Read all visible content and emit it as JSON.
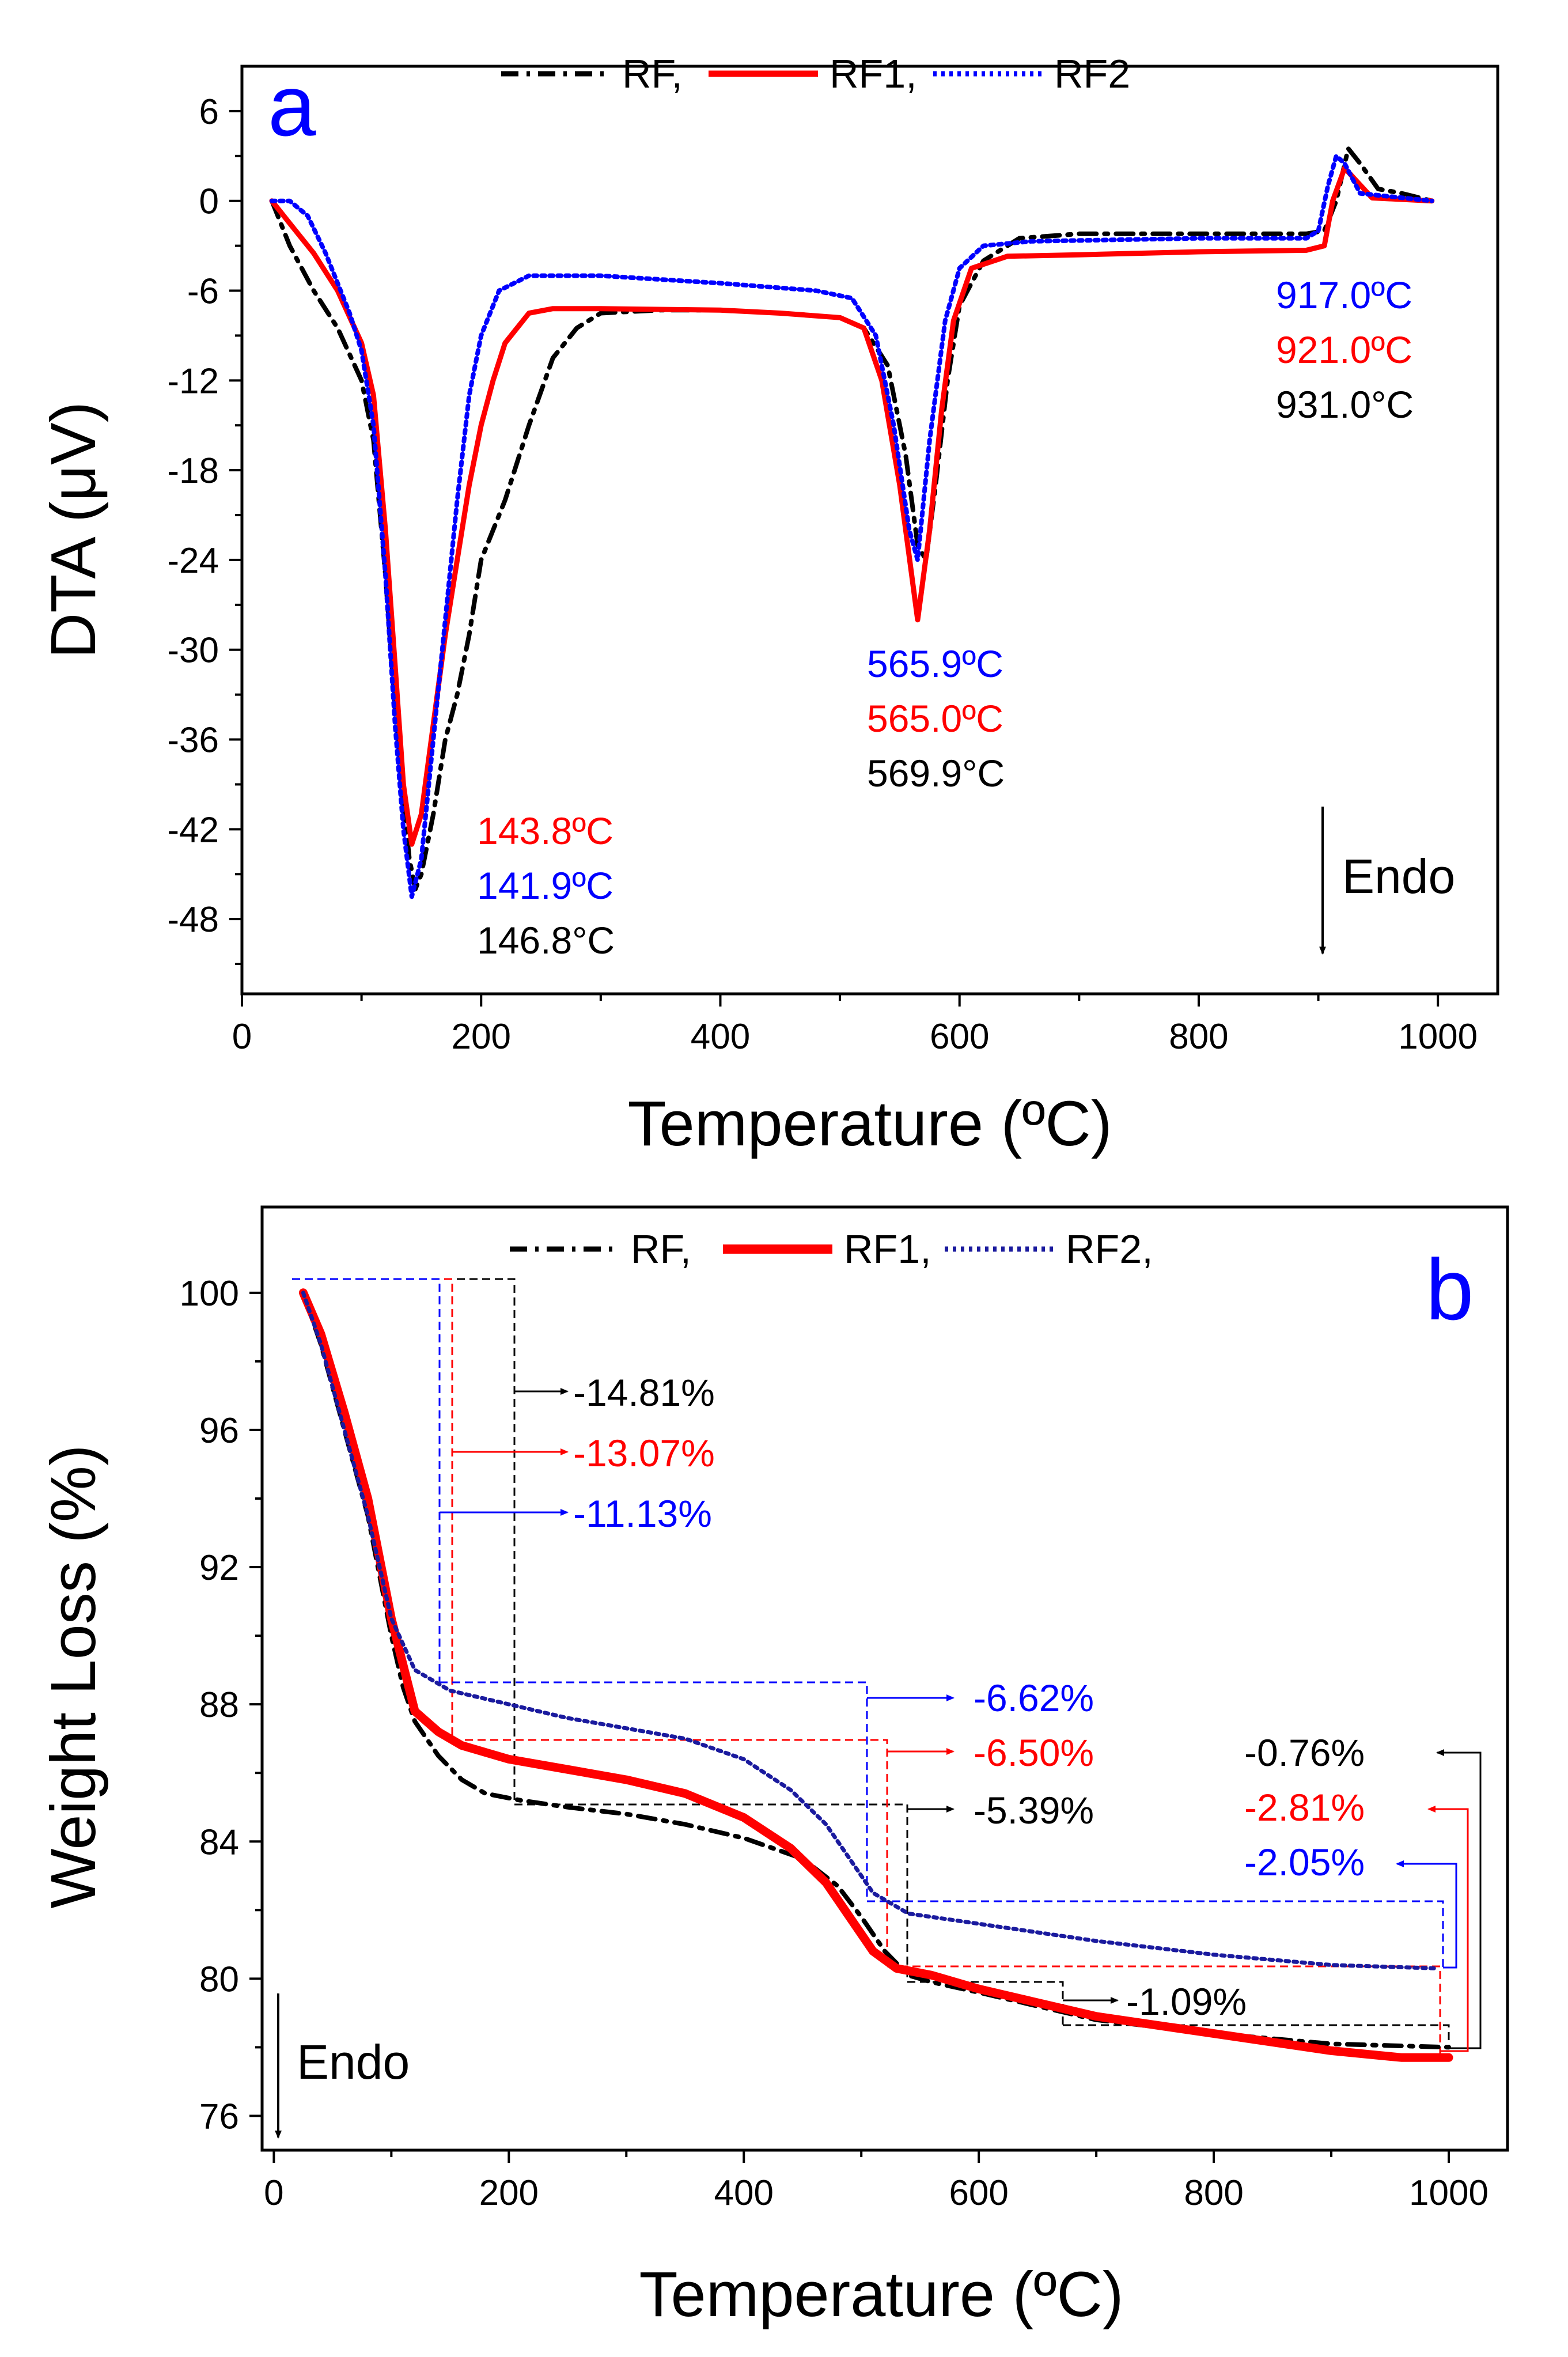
{
  "chart_data": [
    {
      "type": "line",
      "panel_label": "a",
      "xlabel": "Temperature (ºC)",
      "ylabel": "DTA (μV)",
      "xlim": [
        0,
        1050
      ],
      "ylim": [
        -53,
        9
      ],
      "xticks": [
        0,
        200,
        400,
        600,
        800,
        1000
      ],
      "yticks": [
        6,
        0,
        -6,
        -12,
        -18,
        -24,
        -30,
        -36,
        -42,
        -48
      ],
      "legend": {
        "placement": "top-center",
        "entries": [
          "RF,",
          "RF1,",
          "RF2"
        ]
      },
      "series": [
        {
          "name": "RF",
          "color": "#000000",
          "style": "dashdot",
          "points": [
            [
              25,
              0
            ],
            [
              40,
              -3
            ],
            [
              60,
              -6
            ],
            [
              80,
              -8.5
            ],
            [
              100,
              -12
            ],
            [
              110,
              -16
            ],
            [
              120,
              -25
            ],
            [
              128,
              -34
            ],
            [
              135,
              -40
            ],
            [
              140,
              -44
            ],
            [
              145,
              -46
            ],
            [
              150,
              -45
            ],
            [
              160,
              -41
            ],
            [
              170,
              -36
            ],
            [
              180,
              -33
            ],
            [
              190,
              -29
            ],
            [
              200,
              -24
            ],
            [
              220,
              -20
            ],
            [
              240,
              -15
            ],
            [
              260,
              -10.5
            ],
            [
              280,
              -8.5
            ],
            [
              300,
              -7.5
            ],
            [
              350,
              -7.3
            ],
            [
              400,
              -7.3
            ],
            [
              450,
              -7.5
            ],
            [
              500,
              -7.8
            ],
            [
              520,
              -8.5
            ],
            [
              540,
              -11
            ],
            [
              555,
              -17
            ],
            [
              565,
              -23
            ],
            [
              572,
              -24
            ],
            [
              580,
              -19
            ],
            [
              590,
              -12
            ],
            [
              600,
              -7
            ],
            [
              620,
              -4
            ],
            [
              650,
              -2.5
            ],
            [
              700,
              -2.2
            ],
            [
              800,
              -2.2
            ],
            [
              890,
              -2.2
            ],
            [
              905,
              -2
            ],
            [
              915,
              0
            ],
            [
              925,
              3.5
            ],
            [
              935,
              2.5
            ],
            [
              950,
              0.8
            ],
            [
              970,
              0.5
            ],
            [
              995,
              0
            ]
          ]
        },
        {
          "name": "RF1",
          "color": "#ff0000",
          "style": "solid",
          "points": [
            [
              25,
              0
            ],
            [
              40,
              -1.5
            ],
            [
              60,
              -3.5
            ],
            [
              80,
              -6
            ],
            [
              100,
              -9.5
            ],
            [
              110,
              -13
            ],
            [
              120,
              -22
            ],
            [
              128,
              -31
            ],
            [
              135,
              -39
            ],
            [
              142,
              -43
            ],
            [
              150,
              -41
            ],
            [
              160,
              -35
            ],
            [
              170,
              -29
            ],
            [
              180,
              -24
            ],
            [
              190,
              -19
            ],
            [
              200,
              -15
            ],
            [
              210,
              -12
            ],
            [
              220,
              -9.5
            ],
            [
              240,
              -7.5
            ],
            [
              260,
              -7.2
            ],
            [
              300,
              -7.2
            ],
            [
              400,
              -7.3
            ],
            [
              450,
              -7.5
            ],
            [
              500,
              -7.8
            ],
            [
              520,
              -8.5
            ],
            [
              535,
              -12
            ],
            [
              550,
              -19
            ],
            [
              565,
              -28
            ],
            [
              575,
              -22
            ],
            [
              585,
              -14
            ],
            [
              595,
              -8
            ],
            [
              610,
              -4.5
            ],
            [
              640,
              -3.7
            ],
            [
              700,
              -3.6
            ],
            [
              800,
              -3.4
            ],
            [
              890,
              -3.3
            ],
            [
              905,
              -3
            ],
            [
              912,
              0
            ],
            [
              922,
              2.2
            ],
            [
              930,
              1.5
            ],
            [
              945,
              0.2
            ],
            [
              995,
              0
            ]
          ]
        },
        {
          "name": "RF2",
          "color": "#0000ff",
          "style": "dotted",
          "points": [
            [
              25,
              0
            ],
            [
              40,
              0
            ],
            [
              55,
              -1
            ],
            [
              70,
              -3.5
            ],
            [
              90,
              -7.5
            ],
            [
              100,
              -10
            ],
            [
              110,
              -15
            ],
            [
              120,
              -25
            ],
            [
              128,
              -35
            ],
            [
              135,
              -42
            ],
            [
              142,
              -46.5
            ],
            [
              150,
              -44
            ],
            [
              160,
              -36
            ],
            [
              170,
              -28
            ],
            [
              180,
              -20
            ],
            [
              190,
              -13
            ],
            [
              200,
              -9
            ],
            [
              215,
              -6
            ],
            [
              240,
              -5
            ],
            [
              300,
              -5
            ],
            [
              400,
              -5.5
            ],
            [
              480,
              -6
            ],
            [
              510,
              -6.5
            ],
            [
              530,
              -9
            ],
            [
              545,
              -15
            ],
            [
              558,
              -22
            ],
            [
              565,
              -24
            ],
            [
              575,
              -16
            ],
            [
              588,
              -8
            ],
            [
              600,
              -4.5
            ],
            [
              620,
              -3
            ],
            [
              660,
              -2.7
            ],
            [
              800,
              -2.5
            ],
            [
              890,
              -2.5
            ],
            [
              900,
              -2
            ],
            [
              908,
              1
            ],
            [
              915,
              3
            ],
            [
              922,
              2.5
            ],
            [
              935,
              0.5
            ],
            [
              995,
              0
            ]
          ]
        }
      ],
      "annotations": [
        {
          "text": "143.8ºC",
          "color": "#ff0000"
        },
        {
          "text": "141.9ºC",
          "color": "#0000ff"
        },
        {
          "text": "146.8°C",
          "color": "#000000"
        },
        {
          "text": "565.9ºC",
          "color": "#0000ff"
        },
        {
          "text": "565.0ºC",
          "color": "#ff0000"
        },
        {
          "text": "569.9°C",
          "color": "#000000"
        },
        {
          "text": "917.0ºC",
          "color": "#0000ff"
        },
        {
          "text": "921.0ºC",
          "color": "#ff0000"
        },
        {
          "text": "931.0°C",
          "color": "#000000"
        },
        {
          "text": "Endo",
          "color": "#000000"
        }
      ]
    },
    {
      "type": "line",
      "panel_label": "b",
      "xlabel": "Temperature (ºC)",
      "ylabel": "Weight Loss (%)",
      "xlim": [
        -10,
        1050
      ],
      "ylim": [
        75,
        102.5
      ],
      "xticks": [
        0,
        200,
        400,
        600,
        800,
        1000
      ],
      "yticks": [
        100,
        96,
        92,
        88,
        84,
        80,
        76
      ],
      "legend": {
        "placement": "top-center",
        "entries": [
          "RF,",
          "RF1,",
          "RF2,"
        ]
      },
      "series": [
        {
          "name": "RF",
          "color": "#000000",
          "style": "dashdot",
          "points": [
            [
              25,
              100
            ],
            [
              40,
              98.5
            ],
            [
              60,
              96
            ],
            [
              80,
              93.5
            ],
            [
              100,
              90
            ],
            [
              110,
              88.5
            ],
            [
              120,
              87.5
            ],
            [
              140,
              86.5
            ],
            [
              160,
              85.8
            ],
            [
              180,
              85.4
            ],
            [
              210,
              85.2
            ],
            [
              250,
              85
            ],
            [
              300,
              84.8
            ],
            [
              350,
              84.5
            ],
            [
              400,
              84.1
            ],
            [
              450,
              83.5
            ],
            [
              480,
              82.7
            ],
            [
              500,
              81.8
            ],
            [
              520,
              80.8
            ],
            [
              540,
              80.1
            ],
            [
              560,
              79.9
            ],
            [
              600,
              79.6
            ],
            [
              650,
              79.2
            ],
            [
              700,
              78.8
            ],
            [
              800,
              78.4
            ],
            [
              900,
              78.1
            ],
            [
              1000,
              78
            ]
          ]
        },
        {
          "name": "RF1",
          "color": "#ff0000",
          "style": "solid",
          "points": [
            [
              25,
              100
            ],
            [
              40,
              98.8
            ],
            [
              60,
              96.5
            ],
            [
              80,
              94
            ],
            [
              100,
              90.5
            ],
            [
              120,
              87.8
            ],
            [
              140,
              87.2
            ],
            [
              160,
              86.8
            ],
            [
              200,
              86.4
            ],
            [
              250,
              86.1
            ],
            [
              300,
              85.8
            ],
            [
              350,
              85.4
            ],
            [
              400,
              84.7
            ],
            [
              440,
              83.8
            ],
            [
              470,
              82.8
            ],
            [
              490,
              81.8
            ],
            [
              510,
              80.8
            ],
            [
              530,
              80.3
            ],
            [
              560,
              80.1
            ],
            [
              600,
              79.7
            ],
            [
              650,
              79.3
            ],
            [
              700,
              78.9
            ],
            [
              800,
              78.4
            ],
            [
              900,
              77.9
            ],
            [
              960,
              77.7
            ],
            [
              1000,
              77.7
            ]
          ]
        },
        {
          "name": "RF2",
          "color": "#1a1a9e",
          "style": "dotted",
          "points": [
            [
              25,
              100
            ],
            [
              40,
              98.5
            ],
            [
              60,
              96
            ],
            [
              80,
              93.5
            ],
            [
              100,
              90.5
            ],
            [
              120,
              89
            ],
            [
              150,
              88.4
            ],
            [
              200,
              88
            ],
            [
              250,
              87.6
            ],
            [
              300,
              87.3
            ],
            [
              350,
              87
            ],
            [
              400,
              86.4
            ],
            [
              440,
              85.5
            ],
            [
              470,
              84.5
            ],
            [
              490,
              83.5
            ],
            [
              510,
              82.5
            ],
            [
              540,
              81.9
            ],
            [
              600,
              81.6
            ],
            [
              700,
              81.1
            ],
            [
              800,
              80.7
            ],
            [
              900,
              80.4
            ],
            [
              990,
              80.3
            ]
          ]
        }
      ],
      "annotations": [
        {
          "text": "-14.81%",
          "color": "#000000"
        },
        {
          "text": "-13.07%",
          "color": "#ff0000"
        },
        {
          "text": "-11.13%",
          "color": "#0000ff"
        },
        {
          "text": "-6.62%",
          "color": "#0000ff"
        },
        {
          "text": "-6.50%",
          "color": "#ff0000"
        },
        {
          "text": "-5.39%",
          "color": "#000000"
        },
        {
          "text": "-0.76%",
          "color": "#000000"
        },
        {
          "text": "-2.81%",
          "color": "#ff0000"
        },
        {
          "text": "-2.05%",
          "color": "#0000ff"
        },
        {
          "text": "-1.09%",
          "color": "#000000"
        },
        {
          "text": "Endo",
          "color": "#000000"
        }
      ]
    }
  ]
}
